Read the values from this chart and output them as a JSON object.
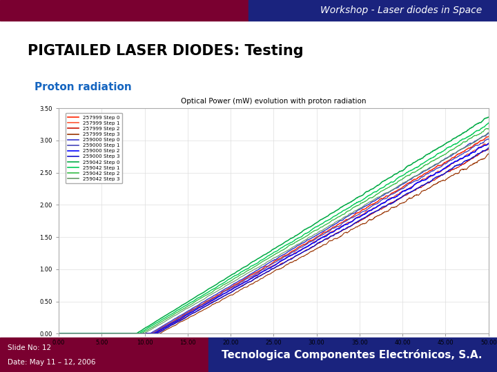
{
  "title": "Workshop - Laser diodes in Space",
  "slide_title": "PIGTAILED LASER DIODES: Testing",
  "subtitle": "Proton radiation",
  "chart_title": "Optical Power (mW) evolution with proton radiation",
  "footer_left_line1": "Slide No: 12",
  "footer_left_line2": "Date: May 11 – 12, 2006",
  "footer_right": "Tecnologica Componentes Electrónicos, S.A.",
  "header_bg_left": "#7a0030",
  "header_bg_right": "#1a237e",
  "footer_bg_left": "#7a0030",
  "footer_bg_right": "#1a237e",
  "slide_bg": "#ffffff",
  "subtitle_color": "#1565C0",
  "series": [
    {
      "label": "257999 Step 0",
      "color": "#ff2200",
      "threshold": 10.8,
      "slope": 0.078,
      "noise": 0.025,
      "lw": 1.0
    },
    {
      "label": "257999 Step 1",
      "color": "#ff5533",
      "threshold": 11.0,
      "slope": 0.076,
      "noise": 0.03,
      "lw": 0.9
    },
    {
      "label": "257999 Step 2",
      "color": "#cc1100",
      "threshold": 11.3,
      "slope": 0.074,
      "noise": 0.028,
      "lw": 0.8
    },
    {
      "label": "257999 Step 3",
      "color": "#993300",
      "threshold": 11.7,
      "slope": 0.072,
      "noise": 0.032,
      "lw": 0.8
    },
    {
      "label": "259000 Step 0",
      "color": "#3333cc",
      "threshold": 10.6,
      "slope": 0.079,
      "noise": 0.02,
      "lw": 1.0
    },
    {
      "label": "259000 Step 1",
      "color": "#4444bb",
      "threshold": 10.9,
      "slope": 0.0775,
      "noise": 0.022,
      "lw": 0.9
    },
    {
      "label": "259000 Step 2",
      "color": "#0000ff",
      "threshold": 11.1,
      "slope": 0.076,
      "noise": 0.025,
      "lw": 1.1
    },
    {
      "label": "259000 Step 3",
      "color": "#1111cc",
      "threshold": 11.4,
      "slope": 0.0745,
      "noise": 0.024,
      "lw": 1.0
    },
    {
      "label": "259042 Step 0",
      "color": "#00aa44",
      "threshold": 9.0,
      "slope": 0.082,
      "noise": 0.018,
      "lw": 1.1
    },
    {
      "label": "259042 Step 1",
      "color": "#00cc55",
      "threshold": 9.3,
      "slope": 0.08,
      "noise": 0.02,
      "lw": 1.0
    },
    {
      "label": "259042 Step 2",
      "color": "#33bb44",
      "threshold": 9.6,
      "slope": 0.079,
      "noise": 0.022,
      "lw": 0.9
    },
    {
      "label": "259042 Step 3",
      "color": "#669966",
      "threshold": 9.9,
      "slope": 0.0775,
      "noise": 0.02,
      "lw": 0.8
    }
  ],
  "xlim": [
    0,
    50
  ],
  "ylim": [
    0,
    3.5
  ],
  "xticks": [
    0,
    5,
    10,
    15,
    20,
    25,
    30,
    35,
    40,
    45,
    50
  ],
  "yticks": [
    0.0,
    0.5,
    1.0,
    1.5,
    2.0,
    2.5,
    3.0,
    3.5
  ],
  "xtick_labels": [
    "0.00",
    "5.00",
    "10.00",
    "15.00",
    "20.00",
    "25.00",
    "30.00",
    "35.00",
    "40.00",
    "45.00",
    "50.00"
  ],
  "ytick_labels": [
    "0.00",
    "0.50",
    "1.00",
    "1.50",
    "2.00",
    "2.50",
    "3.00",
    "3.50"
  ],
  "chart_border_color": "#aaaaaa",
  "grid_color": "#dddddd",
  "chart_bg": "#ffffff"
}
